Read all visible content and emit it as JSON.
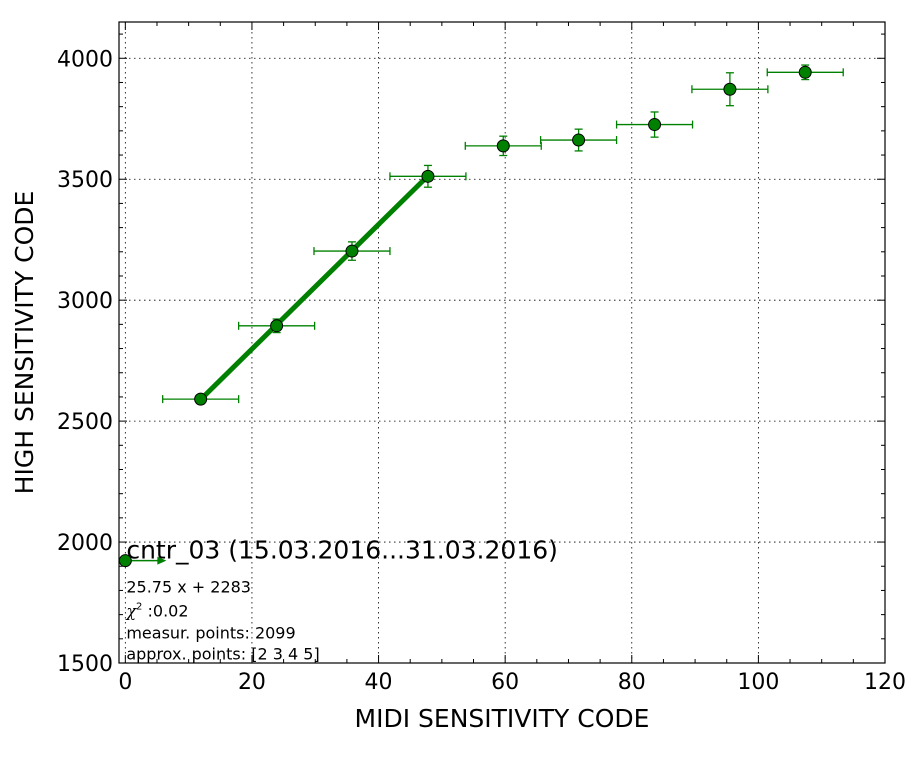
{
  "chart_data": {
    "type": "scatter",
    "xlabel": "MIDI SENSITIVITY CODE",
    "ylabel": "HIGH SENSITIVITY CODE",
    "xlim": [
      -1,
      120
    ],
    "ylim": [
      1500,
      4150
    ],
    "xticks": [
      0,
      20,
      40,
      60,
      80,
      100,
      120
    ],
    "yticks": [
      1500,
      2000,
      2500,
      3000,
      3500,
      4000
    ],
    "grid": true,
    "colors": {
      "series": "#008000",
      "errorbar": "#008000",
      "fit_line": "#008000",
      "marker_edge": "#000000"
    },
    "series": [
      {
        "x": [
          11.9,
          23.9,
          35.8,
          47.8,
          59.7,
          71.6,
          83.6,
          95.5,
          107.4
        ],
        "y": [
          2591,
          2894,
          3203,
          3512,
          3638,
          3662,
          3726,
          3872,
          3942
        ],
        "xerr": [
          6.0,
          6.0,
          6.0,
          6.0,
          6.0,
          6.0,
          6.0,
          6.0,
          6.0
        ],
        "yerr": [
          12,
          28,
          38,
          45,
          40,
          45,
          52,
          68,
          30
        ]
      }
    ],
    "fit": {
      "slope": 25.75,
      "intercept": 2283,
      "x_range": [
        11.9,
        47.8
      ]
    },
    "legend_point": {
      "x": 0,
      "y": 1923
    },
    "annotations": {
      "title": "cntr_03 (15.03.2016...31.03.2016)",
      "equation": "25.75 x + 2283",
      "chi2_symbol": "χ",
      "chi2_power": "2",
      "chi2_value": " :0.02",
      "measur_points": "measur. points: 2099",
      "approx_points": "approx. points: [2 3 4 5]"
    }
  }
}
